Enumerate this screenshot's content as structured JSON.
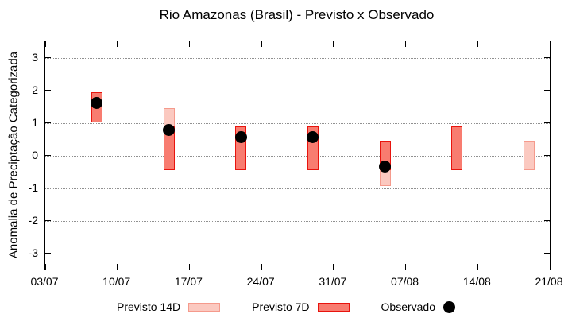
{
  "chart_data": {
    "type": "bar",
    "title": "Rio Amazonas (Brasil) - Previsto x Observado",
    "xlabel": "",
    "ylabel": "Anomalia de Preciptação Categorizada",
    "ylim": [
      -3.5,
      3.5
    ],
    "y_ticks": [
      3,
      2,
      1,
      0,
      -1,
      -2,
      -3
    ],
    "grid": "horizontal-dotted",
    "gridline_color": "#909090",
    "x_range_days": 49,
    "x_ticks": [
      {
        "day": 0,
        "label": "03/07"
      },
      {
        "day": 7,
        "label": "10/07"
      },
      {
        "day": 14,
        "label": "17/07"
      },
      {
        "day": 21,
        "label": "24/07"
      },
      {
        "day": 28,
        "label": "31/07"
      },
      {
        "day": 35,
        "label": "07/08"
      },
      {
        "day": 42,
        "label": "14/08"
      },
      {
        "day": 49,
        "label": "21/08"
      }
    ],
    "series": [
      {
        "name": "Previsto 14D",
        "type": "range-bar",
        "fill_color": "#fbc9c0",
        "border_color": "#f59a8c",
        "points": [
          {
            "date": "15/07",
            "day": 12,
            "low": -0.45,
            "high": 1.45
          },
          {
            "date": "05/08",
            "day": 33,
            "low": -0.95,
            "high": 0.45
          },
          {
            "date": "19/08",
            "day": 47,
            "low": -0.45,
            "high": 0.45
          }
        ]
      },
      {
        "name": "Previsto 7D",
        "type": "range-bar",
        "fill_color": "#f87c70",
        "border_color": "#e8140e",
        "points": [
          {
            "date": "08/07",
            "day": 5,
            "low": 1.0,
            "high": 1.93
          },
          {
            "date": "15/07",
            "day": 12,
            "low": -0.45,
            "high": 0.9
          },
          {
            "date": "22/07",
            "day": 19,
            "low": -0.45,
            "high": 0.9
          },
          {
            "date": "29/07",
            "day": 26,
            "low": -0.45,
            "high": 0.9
          },
          {
            "date": "05/08",
            "day": 33,
            "low": -0.45,
            "high": 0.45
          },
          {
            "date": "12/08",
            "day": 40,
            "low": -0.45,
            "high": 0.9
          }
        ]
      },
      {
        "name": "Observado",
        "type": "scatter",
        "fill_color": "#000000",
        "points": [
          {
            "date": "08/07",
            "day": 5,
            "value": 1.6
          },
          {
            "date": "15/07",
            "day": 12,
            "value": 0.77
          },
          {
            "date": "22/07",
            "day": 19,
            "value": 0.55
          },
          {
            "date": "29/07",
            "day": 26,
            "value": 0.55
          },
          {
            "date": "05/08",
            "day": 33,
            "value": -0.35
          }
        ]
      }
    ],
    "legend": {
      "position": "bottom",
      "items": [
        {
          "label": "Previsto 14D",
          "swatch": "bar-light"
        },
        {
          "label": "Previsto 7D",
          "swatch": "bar-dark"
        },
        {
          "label": "Observado",
          "swatch": "dot"
        }
      ]
    }
  }
}
